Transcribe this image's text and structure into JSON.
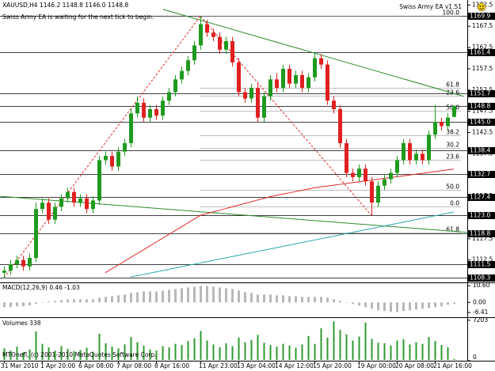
{
  "chart_data": {
    "type": "candlestick",
    "title": "XAUUSD,H4",
    "title_values": [
      "1146.2",
      "1148.8",
      "1146.0",
      "1148.8"
    ],
    "ea_status": "Swiss Army EA is waiting for the next tick to begin.",
    "ea_name": "Swiss Army EA v1.51",
    "copyright": "MTOnefl, (c) 2001-2010 MetaQuotes Software Corp.",
    "up_color": "#1f9a1f",
    "down_color": "#e02020",
    "categories": [
      "31 Mar 2010",
      null,
      null,
      null,
      null,
      null,
      "1 Apr 20:00",
      null,
      null,
      null,
      null,
      null,
      "6 Apr 08:00",
      null,
      null,
      null,
      null,
      null,
      "7 Apr 08:00",
      null,
      null,
      null,
      null,
      null,
      "8 Apr 16:00",
      null,
      null,
      null,
      null,
      null,
      null,
      "11 Apr 23:00",
      null,
      null,
      null,
      null,
      null,
      "13 Apr 04:00",
      null,
      null,
      null,
      null,
      null,
      "14 Apr 12:00",
      null,
      null,
      null,
      null,
      null,
      "15 Apr 20:00",
      null,
      null,
      null,
      null,
      null,
      null,
      "19 Apr 00:00",
      null,
      null,
      null,
      null,
      null,
      "20 Apr 08:00",
      null,
      null,
      null,
      null,
      null,
      "21 Apr 16:00",
      null,
      null,
      null
    ],
    "open": [
      1109.5,
      1110,
      1111.5,
      1112.5,
      1111,
      1113,
      1124.5,
      1126,
      1122,
      1125,
      1127,
      1128.5,
      1126,
      1127,
      1124.5,
      1126.5,
      1136,
      1137,
      1134.5,
      1138,
      1140,
      1147,
      1149.5,
      1146,
      1148,
      1146.5,
      1150,
      1152,
      1155,
      1157,
      1159.5,
      1163,
      1168,
      1166,
      1165,
      1162,
      1164,
      1159,
      1152,
      1150.5,
      1153,
      1146,
      1151,
      1155,
      1153,
      1157.5,
      1154,
      1156,
      1153,
      1155.5,
      1160,
      1158.5,
      1150,
      1148,
      1140,
      1133,
      1132,
      1134,
      1131,
      1126,
      1130,
      1131.5,
      1133,
      1136,
      1140,
      1136,
      1137.5,
      1136,
      1142,
      1145,
      1144,
      1146.2
    ],
    "high": [
      1111,
      1112.5,
      1113.5,
      1113.5,
      1114,
      1126,
      1127,
      1127,
      1126,
      1128,
      1129.5,
      1129.5,
      1128,
      1128,
      1127.5,
      1137,
      1138,
      1138,
      1139,
      1141,
      1148,
      1151,
      1150.5,
      1149,
      1149,
      1151,
      1153,
      1156,
      1158,
      1160.5,
      1164,
      1169.9,
      1169,
      1167,
      1166,
      1165,
      1165,
      1160,
      1153,
      1154,
      1154,
      1152,
      1156,
      1156.5,
      1158.5,
      1158.5,
      1157,
      1157,
      1156.5,
      1161.4,
      1161,
      1159.5,
      1151,
      1149,
      1141,
      1134,
      1135,
      1135,
      1132,
      1131,
      1132.5,
      1134,
      1137,
      1141,
      1141,
      1138.5,
      1138.5,
      1143,
      1149,
      1146,
      1147,
      1148.8
    ],
    "low": [
      1108.3,
      1109,
      1110.5,
      1110,
      1110,
      1112,
      1123.5,
      1121,
      1121,
      1124,
      1126,
      1125,
      1125,
      1123.5,
      1123.5,
      1125.5,
      1135,
      1133.5,
      1133.5,
      1137,
      1139,
      1146,
      1145,
      1145,
      1145.5,
      1145.5,
      1149,
      1151,
      1154,
      1156,
      1158.5,
      1162,
      1165,
      1164,
      1161,
      1161,
      1158,
      1151,
      1149.5,
      1149.5,
      1145,
      1145,
      1150,
      1152,
      1152,
      1153,
      1153,
      1152,
      1152,
      1154.5,
      1157.5,
      1149,
      1147,
      1139,
      1132,
      1131,
      1131,
      1130,
      1123,
      1125,
      1129,
      1130.5,
      1132,
      1135,
      1135,
      1135,
      1135,
      1135,
      1141,
      1143,
      1143,
      1146
    ],
    "close": [
      1110,
      1111.5,
      1112.5,
      1111,
      1113,
      1124.5,
      1126,
      1122,
      1125,
      1127,
      1128.5,
      1126,
      1127,
      1124.5,
      1126.5,
      1136,
      1137,
      1134.5,
      1138,
      1140,
      1147,
      1149.5,
      1146,
      1148,
      1146.5,
      1150,
      1152,
      1155,
      1157,
      1159.5,
      1163,
      1168,
      1166,
      1165,
      1162,
      1164,
      1159,
      1152,
      1150.5,
      1153,
      1146,
      1151,
      1155,
      1153,
      1157.5,
      1154,
      1156,
      1153,
      1155.5,
      1160,
      1158.5,
      1150,
      1148,
      1140,
      1133,
      1132,
      1134,
      1131,
      1126,
      1130,
      1131.5,
      1133,
      1136,
      1140,
      1136,
      1137.5,
      1136,
      1142,
      1145,
      1144,
      1146,
      1148.8
    ],
    "ylim": [
      1107.6,
      1173.5
    ],
    "yticks": [
      1112.5,
      1117.5,
      1122.5,
      1127.5,
      1132.5,
      1137.5,
      1142.5,
      1147.5,
      1152.5,
      1157.5,
      1162.5,
      1167.5,
      1172.5
    ],
    "levels": [
      1169.9,
      1161.4,
      1151.7,
      1148.8,
      {
        "value": 1145,
        "label": "1145.0"
      },
      1138.4,
      1132.7,
      1127.4,
      {
        "value": 1123,
        "label": "1123.0"
      },
      1118.8,
      1111.5,
      1108.3
    ],
    "fib_levels": [
      {
        "label": "100.0",
        "value": 1169.9
      },
      {
        "label": "61.8",
        "value": 1153
      },
      {
        "label": "23.6",
        "value": 1151.2
      },
      {
        "label": "50.0",
        "value": 1147.6
      },
      {
        "label": "38.2",
        "value": 1141.9
      },
      {
        "label": "30.2",
        "value": 1138.9
      },
      {
        "label": "23.6",
        "value": 1136
      },
      {
        "label": "50.0",
        "value": 1129.1
      },
      {
        "label": "0.0",
        "value": 1125.1
      },
      {
        "label": "61.8",
        "value": 1118.9
      }
    ],
    "fib_lines": [
      {
        "color": "#e03030",
        "x": [
          0,
          31
        ],
        "y": [
          1108.3,
          1169.9
        ]
      },
      {
        "color": "#e03030",
        "x": [
          31,
          58
        ],
        "y": [
          1169.9,
          1123
        ]
      }
    ],
    "trendlines": [
      {
        "color": "#2e8b2e",
        "x": [
          25.1,
          72.6
        ],
        "y": [
          1171.5,
          1151
        ]
      },
      {
        "color": "#2e8b2e",
        "x": [
          -0.6,
          73.1
        ],
        "y": [
          1127.5,
          1119
        ]
      }
    ],
    "ma_lines": [
      {
        "color": "#e02828",
        "values": [
          null,
          null,
          null,
          null,
          null,
          null,
          null,
          null,
          null,
          null,
          null,
          null,
          null,
          null,
          null,
          null,
          1109.5,
          1110.4,
          1111.3,
          1112.2,
          1113.1,
          1114,
          1114.9,
          1115.8,
          1116.7,
          1117.6,
          1118.5,
          1119.4,
          1120.3,
          1121.2,
          1122.1,
          1123,
          1123.4,
          1123.8,
          1124.2,
          1124.6,
          1125,
          1125.4,
          1125.8,
          1126.2,
          1126.6,
          1127,
          1127.4,
          1127.7,
          1128,
          1128.3,
          1128.6,
          1128.9,
          1129.2,
          1129.5,
          1129.7,
          1129.9,
          1130.1,
          1130.3,
          1130.5,
          1130.7,
          1130.9,
          1131.1,
          1131.3,
          1131.5,
          1131.7,
          1131.9,
          1132.1,
          1132.3,
          1132.5,
          1132.7,
          1132.9,
          1133.1,
          1133.3,
          1133.5,
          1133.7,
          1133.9
        ]
      },
      {
        "color": "#2aa8b0",
        "values": [
          null,
          null,
          null,
          null,
          null,
          null,
          null,
          null,
          null,
          null,
          null,
          null,
          null,
          null,
          null,
          null,
          null,
          null,
          null,
          null,
          1108.5,
          1108.8,
          1109.1,
          1109.4,
          1109.7,
          1110,
          1110.3,
          1110.6,
          1110.9,
          1111.2,
          1111.5,
          1111.8,
          1112.1,
          1112.4,
          1112.7,
          1113,
          1113.3,
          1113.6,
          1113.9,
          1114.2,
          1114.5,
          1114.8,
          1115.1,
          1115.4,
          1115.7,
          1116,
          1116.3,
          1116.6,
          1116.9,
          1117.2,
          1117.5,
          1117.8,
          1118.1,
          1118.4,
          1118.7,
          1119,
          1119.3,
          1119.6,
          1119.9,
          1120.2,
          1120.5,
          1120.8,
          1121.1,
          1121.4,
          1121.7,
          1122,
          1122.3,
          1122.6,
          1122.9,
          1123.2,
          1123.5,
          1123.8
        ]
      }
    ],
    "macd": {
      "title": "MACD(12,26,9) 0.46 -1.03",
      "color": "#b8b8b8",
      "values": [
        -3,
        -3,
        -2.5,
        -2.5,
        -2,
        -1,
        0,
        0.5,
        1,
        1.5,
        2,
        2,
        2,
        2,
        2,
        3,
        3.5,
        4,
        4.5,
        5,
        6,
        6.5,
        7,
        7,
        7,
        7.5,
        8,
        8.5,
        9,
        9.5,
        10,
        10.5,
        10.5,
        10,
        9.5,
        9,
        8.5,
        7.5,
        6.5,
        6,
        5,
        5,
        5,
        4.5,
        4.5,
        4,
        4,
        3.5,
        3.5,
        3.5,
        3.5,
        3,
        2,
        1,
        0,
        -1,
        -2,
        -3,
        -4,
        -5,
        -5.5,
        -6,
        -6,
        -5.5,
        -5,
        -4.5,
        -4,
        -3.5,
        -3,
        -2.5,
        -1.5,
        -1
      ],
      "ylim": [
        -8.9,
        12.2
      ],
      "yticks": [
        {
          "value": 10.6,
          "label": "10.60"
        },
        {
          "value": 0,
          "label": "0.00"
        },
        -6.41
      ]
    },
    "volumes": {
      "title": "Volumes 338",
      "color": "#2f9a2f",
      "values": [
        2200,
        1800,
        2500,
        1500,
        2000,
        5200,
        3000,
        2400,
        1800,
        2600,
        2100,
        1700,
        1900,
        2300,
        1600,
        4800,
        3100,
        2500,
        2200,
        2900,
        4200,
        3300,
        2700,
        2000,
        1800,
        2600,
        2400,
        3000,
        2800,
        3500,
        4000,
        5300,
        3600,
        2900,
        2400,
        3100,
        2600,
        4100,
        3300,
        3700,
        4600,
        3200,
        2800,
        2500,
        3000,
        2700,
        2300,
        2900,
        4400,
        3000,
        5800,
        4100,
        7000,
        5500,
        4700,
        3600,
        4300,
        6800,
        3900,
        3200,
        3100,
        2700,
        3600,
        3800,
        2900,
        3300,
        3000,
        4200,
        3500,
        2800,
        2400,
        338
      ],
      "ylim": [
        0,
        7600
      ],
      "yticks": [
        7203,
        0
      ]
    }
  }
}
